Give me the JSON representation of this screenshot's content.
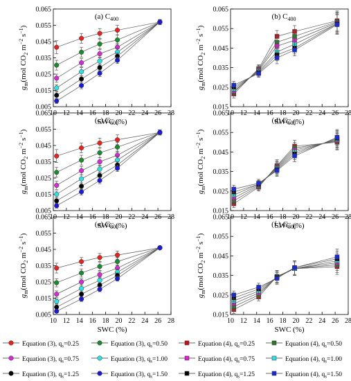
{
  "figure": {
    "ylabel_main": "g",
    "ylabel_sub": "m",
    "ylabel_unit": "(mol CO",
    "ylabel_unit_sub": "2",
    "ylabel_unit_tail": " m",
    "ylabel_exp1": "−2",
    "ylabel_s": " s",
    "ylabel_exp2": "−1",
    "ylabel_close": ")",
    "xlabel": "SWC (%)"
  },
  "legend": [
    {
      "text": "Equation (3), q",
      "sub": "s",
      "val": "=0.25",
      "marker": "circle",
      "color": "#e8231f"
    },
    {
      "text": "Equation (3), q",
      "sub": "s",
      "val": "=0.50",
      "marker": "circle",
      "color": "#1a8a2e"
    },
    {
      "text": "Equation (4), q",
      "sub": "s",
      "val": "=0.25",
      "marker": "square",
      "color": "#c8101a"
    },
    {
      "text": "Equation (4), q",
      "sub": "s",
      "val": "=0.50",
      "marker": "square",
      "color": "#2a7a2a"
    },
    {
      "text": "Equation (3), q",
      "sub": "s",
      "val": "=0.75",
      "marker": "circle",
      "color": "#d42bd4"
    },
    {
      "text": "Equation (3), q",
      "sub": "s",
      "val": "=1.00",
      "marker": "circle",
      "color": "#2ee0e0"
    },
    {
      "text": "Equation (4), q",
      "sub": "s",
      "val": "=0.75",
      "marker": "square",
      "color": "#e020d0"
    },
    {
      "text": "Equation (4), q",
      "sub": "s",
      "val": "=1.00",
      "marker": "square",
      "color": "#30e0e8"
    },
    {
      "text": "Equation (3), q",
      "sub": "s",
      "val": "=1.25",
      "marker": "circle",
      "color": "#000000"
    },
    {
      "text": "Equation (3), q",
      "sub": "s",
      "val": "=1.50",
      "marker": "circle",
      "color": "#1a1ad8"
    },
    {
      "text": "Equation (4), q",
      "sub": "s",
      "val": "=1.25",
      "marker": "square",
      "color": "#000000"
    },
    {
      "text": "Equation (4), q",
      "sub": "s",
      "val": "=1.50",
      "marker": "square",
      "color": "#1a2ad8"
    }
  ],
  "chart_data": [
    {
      "type": "line",
      "label": "(a) C",
      "label_sub": "400",
      "marker": "circle",
      "x": [
        10.5,
        14.3,
        17.1,
        19.8,
        26.3
      ],
      "xticks": [
        "10",
        "12",
        "14",
        "16",
        "18",
        "20",
        "22",
        "24",
        "26",
        "28"
      ],
      "xlim": [
        10,
        28
      ],
      "ylim": [
        0.005,
        0.065
      ],
      "yticks": [
        "0.005",
        "0.015",
        "0.025",
        "0.035",
        "0.045",
        "0.055",
        "0.065"
      ],
      "series": [
        {
          "name": "Equation (3), qs=0.25",
          "color": "#e8231f",
          "values": [
            0.0415,
            0.047,
            0.05,
            0.052,
            0.057
          ],
          "err": [
            0.004,
            0.003,
            0.003,
            0.003,
            0.0015
          ]
        },
        {
          "name": "Equation (3), qs=0.50",
          "color": "#1a8a2e",
          "values": [
            0.0305,
            0.0385,
            0.0435,
            0.046,
            0.057
          ],
          "err": [
            0.003,
            0.003,
            0.003,
            0.003,
            0.0015
          ]
        },
        {
          "name": "Equation (3), qs=0.75",
          "color": "#d42bd4",
          "values": [
            0.0225,
            0.032,
            0.0375,
            0.0415,
            0.057
          ],
          "err": [
            0.0025,
            0.0025,
            0.0025,
            0.0025,
            0.0015
          ]
        },
        {
          "name": "Equation (3), qs=1.00",
          "color": "#2ee0e0",
          "values": [
            0.0165,
            0.0265,
            0.033,
            0.0385,
            0.057
          ],
          "err": [
            0.002,
            0.0025,
            0.0025,
            0.0025,
            0.0015
          ]
        },
        {
          "name": "Equation (3), qs=1.25",
          "color": "#000000",
          "values": [
            0.012,
            0.022,
            0.029,
            0.036,
            0.057
          ],
          "err": [
            0.002,
            0.002,
            0.002,
            0.002,
            0.0015
          ]
        },
        {
          "name": "Equation (3), qs=1.50",
          "color": "#1a1ad8",
          "values": [
            0.0085,
            0.018,
            0.0255,
            0.0335,
            0.057
          ],
          "err": [
            0.0015,
            0.002,
            0.002,
            0.002,
            0.0015
          ]
        }
      ]
    },
    {
      "type": "line",
      "label": "(b) C",
      "label_sub": "400",
      "marker": "square",
      "x": [
        10.5,
        14.3,
        17.1,
        19.8,
        26.3
      ],
      "xticks": [
        "10",
        "12",
        "14",
        "16",
        "18",
        "20",
        "22",
        "24",
        "26",
        "28"
      ],
      "xlim": [
        10,
        28
      ],
      "ylim": [
        0.015,
        0.065
      ],
      "yticks": [
        "0.015",
        "0.025",
        "0.035",
        "0.045",
        "0.055",
        "0.065"
      ],
      "series": [
        {
          "name": "Equation (4), qs=0.25",
          "color": "#c8101a",
          "values": [
            0.0215,
            0.0345,
            0.051,
            0.0535,
            0.059
          ],
          "err": [
            0.002,
            0.002,
            0.003,
            0.003,
            0.005
          ]
        },
        {
          "name": "Equation (4), qs=0.50",
          "color": "#2a7a2a",
          "values": [
            0.0225,
            0.034,
            0.048,
            0.051,
            0.0585
          ],
          "err": [
            0.002,
            0.002,
            0.003,
            0.003,
            0.005
          ]
        },
        {
          "name": "Equation (4), qs=0.75",
          "color": "#e020d0",
          "values": [
            0.023,
            0.0335,
            0.046,
            0.049,
            0.058
          ],
          "err": [
            0.002,
            0.002,
            0.003,
            0.003,
            0.005
          ]
        },
        {
          "name": "Equation (4), qs=1.00",
          "color": "#30e0e8",
          "values": [
            0.024,
            0.033,
            0.043,
            0.047,
            0.0575
          ],
          "err": [
            0.002,
            0.002,
            0.003,
            0.003,
            0.005
          ]
        },
        {
          "name": "Equation (4), qs=1.25",
          "color": "#000000",
          "values": [
            0.025,
            0.0325,
            0.0415,
            0.045,
            0.0575
          ],
          "err": [
            0.002,
            0.002,
            0.003,
            0.003,
            0.005
          ]
        },
        {
          "name": "Equation (4), qs=1.50",
          "color": "#1a2ad8",
          "values": [
            0.026,
            0.032,
            0.04,
            0.044,
            0.057
          ],
          "err": [
            0.002,
            0.002,
            0.003,
            0.003,
            0.005
          ]
        }
      ]
    },
    {
      "type": "line",
      "label": "(c) C",
      "label_sub": "600",
      "marker": "circle",
      "x": [
        10.5,
        14.3,
        17.1,
        19.8,
        26.3
      ],
      "xticks": [
        "10",
        "12",
        "14",
        "16",
        "18",
        "20",
        "22",
        "24",
        "26",
        "28"
      ],
      "xlim": [
        10,
        28
      ],
      "ylim": [
        0.005,
        0.065
      ],
      "yticks": [
        "0.005",
        "0.015",
        "0.025",
        "0.035",
        "0.045",
        "0.055",
        "0.065"
      ],
      "series": [
        {
          "name": "Equation (3), qs=0.25",
          "color": "#e8231f",
          "values": [
            0.0385,
            0.0435,
            0.0465,
            0.0485,
            0.053
          ],
          "err": [
            0.004,
            0.003,
            0.003,
            0.003,
            0.0015
          ]
        },
        {
          "name": "Equation (3), qs=0.50",
          "color": "#1a8a2e",
          "values": [
            0.0285,
            0.036,
            0.0405,
            0.044,
            0.053
          ],
          "err": [
            0.003,
            0.003,
            0.003,
            0.003,
            0.0015
          ]
        },
        {
          "name": "Equation (3), qs=0.75",
          "color": "#d42bd4",
          "values": [
            0.0205,
            0.0295,
            0.035,
            0.039,
            0.053
          ],
          "err": [
            0.0025,
            0.0025,
            0.0025,
            0.0025,
            0.0015
          ]
        },
        {
          "name": "Equation (3), qs=1.00",
          "color": "#2ee0e0",
          "values": [
            0.015,
            0.0245,
            0.0305,
            0.036,
            0.053
          ],
          "err": [
            0.002,
            0.0025,
            0.0025,
            0.0025,
            0.0015
          ]
        },
        {
          "name": "Equation (3), qs=1.25",
          "color": "#000000",
          "values": [
            0.011,
            0.02,
            0.0265,
            0.033,
            0.053
          ],
          "err": [
            0.002,
            0.002,
            0.002,
            0.002,
            0.0015
          ]
        },
        {
          "name": "Equation (3), qs=1.50",
          "color": "#1a1ad8",
          "values": [
            0.008,
            0.0165,
            0.0235,
            0.031,
            0.053
          ],
          "err": [
            0.0015,
            0.002,
            0.002,
            0.002,
            0.0015
          ]
        }
      ]
    },
    {
      "type": "line",
      "label": "(d) C",
      "label_sub": "600",
      "marker": "square",
      "x": [
        10.5,
        14.3,
        17.1,
        19.8,
        26.3
      ],
      "xticks": [
        "10",
        "12",
        "14",
        "16",
        "18",
        "20",
        "22",
        "24",
        "26",
        "28"
      ],
      "xlim": [
        10,
        28
      ],
      "ylim": [
        0.015,
        0.065
      ],
      "yticks": [
        "0.015",
        "0.025",
        "0.035",
        "0.045",
        "0.055",
        "0.065"
      ],
      "series": [
        {
          "name": "Equation (4), qs=0.25",
          "color": "#c8101a",
          "values": [
            0.0185,
            0.027,
            0.038,
            0.048,
            0.05
          ],
          "err": [
            0.002,
            0.002,
            0.003,
            0.003,
            0.004
          ]
        },
        {
          "name": "Equation (4), qs=0.50",
          "color": "#2a7a2a",
          "values": [
            0.02,
            0.0275,
            0.0375,
            0.047,
            0.0505
          ],
          "err": [
            0.002,
            0.002,
            0.003,
            0.003,
            0.004
          ]
        },
        {
          "name": "Equation (4), qs=0.75",
          "color": "#e020d0",
          "values": [
            0.0215,
            0.028,
            0.037,
            0.046,
            0.051
          ],
          "err": [
            0.002,
            0.002,
            0.003,
            0.003,
            0.004
          ]
        },
        {
          "name": "Equation (4), qs=1.00",
          "color": "#30e0e8",
          "values": [
            0.023,
            0.0285,
            0.0365,
            0.045,
            0.0515
          ],
          "err": [
            0.002,
            0.002,
            0.003,
            0.003,
            0.004
          ]
        },
        {
          "name": "Equation (4), qs=1.25",
          "color": "#000000",
          "values": [
            0.0245,
            0.0285,
            0.036,
            0.044,
            0.052
          ],
          "err": [
            0.002,
            0.002,
            0.003,
            0.003,
            0.004
          ]
        },
        {
          "name": "Equation (4), qs=1.50",
          "color": "#1a2ad8",
          "values": [
            0.026,
            0.029,
            0.0355,
            0.043,
            0.0525
          ],
          "err": [
            0.002,
            0.002,
            0.003,
            0.003,
            0.004
          ]
        }
      ]
    },
    {
      "type": "line",
      "label": "(e) C",
      "label_sub": "800",
      "marker": "circle",
      "x": [
        10.5,
        14.3,
        17.1,
        19.8,
        26.3
      ],
      "xticks": [
        "10",
        "12",
        "14",
        "16",
        "18",
        "20",
        "22",
        "24",
        "26",
        "28"
      ],
      "xlim": [
        10,
        28
      ],
      "ylim": [
        0.005,
        0.065
      ],
      "yticks": [
        "0.005",
        "0.015",
        "0.025",
        "0.035",
        "0.045",
        "0.055",
        "0.065"
      ],
      "series": [
        {
          "name": "Equation (3), qs=0.25",
          "color": "#e8231f",
          "values": [
            0.0335,
            0.0375,
            0.04,
            0.0415,
            0.046
          ],
          "err": [
            0.003,
            0.0025,
            0.0025,
            0.0025,
            0.001
          ]
        },
        {
          "name": "Equation (3), qs=0.50",
          "color": "#1a8a2e",
          "values": [
            0.0245,
            0.0305,
            0.0345,
            0.0375,
            0.046
          ],
          "err": [
            0.0025,
            0.0025,
            0.0025,
            0.0025,
            0.001
          ]
        },
        {
          "name": "Equation (3), qs=0.75",
          "color": "#d42bd4",
          "values": [
            0.0175,
            0.025,
            0.0295,
            0.0335,
            0.046
          ],
          "err": [
            0.002,
            0.002,
            0.002,
            0.002,
            0.001
          ]
        },
        {
          "name": "Equation (3), qs=1.00",
          "color": "#2ee0e0",
          "values": [
            0.013,
            0.021,
            0.026,
            0.031,
            0.046
          ],
          "err": [
            0.0015,
            0.002,
            0.002,
            0.002,
            0.001
          ]
        },
        {
          "name": "Equation (3), qs=1.25",
          "color": "#000000",
          "values": [
            0.0095,
            0.0175,
            0.023,
            0.029,
            0.046
          ],
          "err": [
            0.0015,
            0.0015,
            0.0015,
            0.0015,
            0.001
          ]
        },
        {
          "name": "Equation (3), qs=1.50",
          "color": "#1a1ad8",
          "values": [
            0.007,
            0.0145,
            0.0205,
            0.027,
            0.046
          ],
          "err": [
            0.001,
            0.0015,
            0.0015,
            0.0015,
            0.001
          ]
        }
      ]
    },
    {
      "type": "line",
      "label": "(f ) C",
      "label_sub": "800",
      "marker": "square",
      "x": [
        10.5,
        14.3,
        17.1,
        19.8,
        26.3
      ],
      "xticks": [
        "10",
        "12",
        "14",
        "16",
        "18",
        "20",
        "22",
        "24",
        "26",
        "28"
      ],
      "xlim": [
        10,
        28
      ],
      "ylim": [
        0.015,
        0.065
      ],
      "yticks": [
        "0.015",
        "0.025",
        "0.035",
        "0.045",
        "0.055",
        "0.065"
      ],
      "series": [
        {
          "name": "Equation (4), qs=0.25",
          "color": "#c8101a",
          "values": [
            0.0175,
            0.024,
            0.0345,
            0.0385,
            0.0395
          ],
          "err": [
            0.002,
            0.002,
            0.003,
            0.0035,
            0.004
          ]
        },
        {
          "name": "Equation (4), qs=0.50",
          "color": "#2a7a2a",
          "values": [
            0.019,
            0.025,
            0.0345,
            0.0385,
            0.0405
          ],
          "err": [
            0.002,
            0.002,
            0.003,
            0.0035,
            0.004
          ]
        },
        {
          "name": "Equation (4), qs=0.75",
          "color": "#e020d0",
          "values": [
            0.0205,
            0.026,
            0.034,
            0.0385,
            0.0415
          ],
          "err": [
            0.002,
            0.002,
            0.003,
            0.0035,
            0.004
          ]
        },
        {
          "name": "Equation (4), qs=1.00",
          "color": "#30e0e8",
          "values": [
            0.022,
            0.027,
            0.034,
            0.0385,
            0.0425
          ],
          "err": [
            0.002,
            0.002,
            0.003,
            0.0035,
            0.004
          ]
        },
        {
          "name": "Equation (4), qs=1.25",
          "color": "#000000",
          "values": [
            0.0235,
            0.028,
            0.034,
            0.039,
            0.0435
          ],
          "err": [
            0.002,
            0.002,
            0.003,
            0.0035,
            0.004
          ]
        },
        {
          "name": "Equation (4), qs=1.50",
          "color": "#1a2ad8",
          "values": [
            0.025,
            0.029,
            0.0335,
            0.039,
            0.0445
          ],
          "err": [
            0.002,
            0.002,
            0.003,
            0.0035,
            0.004
          ]
        }
      ]
    }
  ]
}
